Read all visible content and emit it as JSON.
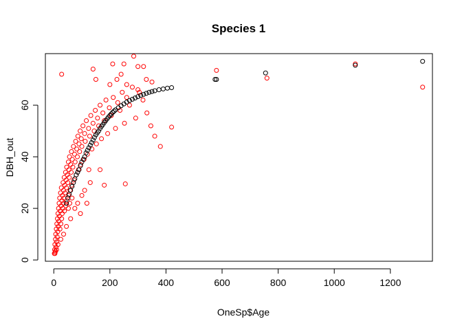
{
  "chart_data": {
    "type": "scatter",
    "title": "Species 1",
    "xlabel": "OneSp$Age",
    "ylabel": "DBH_out",
    "xlim": [
      -30,
      1350
    ],
    "ylim": [
      -0.5,
      80
    ],
    "x_ticks": [
      0,
      200,
      400,
      600,
      800,
      1000,
      1200
    ],
    "y_ticks": [
      0,
      20,
      40,
      60
    ],
    "grid": false,
    "legend": "none",
    "marker": "open-circle",
    "series": [
      {
        "color": "#ff0000",
        "points": [
          [
            2,
            2.5
          ],
          [
            3,
            4
          ],
          [
            4,
            6
          ],
          [
            5,
            3
          ],
          [
            6,
            8
          ],
          [
            7,
            10
          ],
          [
            8,
            5
          ],
          [
            9,
            12
          ],
          [
            10,
            7
          ],
          [
            11,
            14
          ],
          [
            12,
            9
          ],
          [
            13,
            16
          ],
          [
            14,
            11
          ],
          [
            15,
            18
          ],
          [
            16,
            13
          ],
          [
            17,
            20
          ],
          [
            18,
            15
          ],
          [
            19,
            22
          ],
          [
            20,
            17
          ],
          [
            21,
            24
          ],
          [
            22,
            12
          ],
          [
            23,
            19
          ],
          [
            24,
            26
          ],
          [
            25,
            14
          ],
          [
            26,
            21
          ],
          [
            27,
            28
          ],
          [
            28,
            16
          ],
          [
            29,
            23
          ],
          [
            30,
            18
          ],
          [
            31,
            25
          ],
          [
            32,
            20
          ],
          [
            33,
            30
          ],
          [
            34,
            22
          ],
          [
            35,
            27
          ],
          [
            36,
            24
          ],
          [
            37,
            32
          ],
          [
            38,
            19
          ],
          [
            39,
            29
          ],
          [
            40,
            26
          ],
          [
            42,
            34
          ],
          [
            43,
            21
          ],
          [
            44,
            31
          ],
          [
            45,
            28
          ],
          [
            46,
            36
          ],
          [
            47,
            23
          ],
          [
            48,
            33
          ],
          [
            50,
            30
          ],
          [
            52,
            38
          ],
          [
            53,
            25
          ],
          [
            54,
            35
          ],
          [
            55,
            32
          ],
          [
            56,
            40
          ],
          [
            58,
            27
          ],
          [
            60,
            37
          ],
          [
            62,
            34
          ],
          [
            63,
            42
          ],
          [
            64,
            29
          ],
          [
            66,
            39
          ],
          [
            68,
            36
          ],
          [
            70,
            44
          ],
          [
            72,
            31
          ],
          [
            74,
            41
          ],
          [
            76,
            38
          ],
          [
            78,
            46
          ],
          [
            80,
            33
          ],
          [
            82,
            43
          ],
          [
            84,
            40
          ],
          [
            86,
            48
          ],
          [
            88,
            35
          ],
          [
            90,
            45
          ],
          [
            92,
            42
          ],
          [
            94,
            50
          ],
          [
            96,
            37
          ],
          [
            98,
            47
          ],
          [
            100,
            44
          ],
          [
            104,
            52
          ],
          [
            108,
            39
          ],
          [
            110,
            49
          ],
          [
            112,
            46
          ],
          [
            116,
            54
          ],
          [
            120,
            41
          ],
          [
            124,
            51
          ],
          [
            128,
            48
          ],
          [
            132,
            56
          ],
          [
            136,
            43
          ],
          [
            140,
            53
          ],
          [
            144,
            50
          ],
          [
            148,
            58
          ],
          [
            152,
            45
          ],
          [
            156,
            55
          ],
          [
            160,
            52
          ],
          [
            165,
            60
          ],
          [
            170,
            47
          ],
          [
            175,
            57
          ],
          [
            180,
            54
          ],
          [
            186,
            62
          ],
          [
            192,
            49
          ],
          [
            198,
            59
          ],
          [
            205,
            56
          ],
          [
            212,
            63
          ],
          [
            220,
            51
          ],
          [
            228,
            61
          ],
          [
            236,
            58
          ],
          [
            244,
            65
          ],
          [
            252,
            53
          ],
          [
            260,
            63
          ],
          [
            270,
            60
          ],
          [
            280,
            67
          ],
          [
            292,
            55
          ],
          [
            305,
            65
          ],
          [
            318,
            62
          ],
          [
            332,
            57
          ],
          [
            346,
            52
          ],
          [
            360,
            48
          ],
          [
            380,
            44
          ],
          [
            420,
            51.5
          ],
          [
            28,
            72
          ],
          [
            140,
            74
          ],
          [
            150,
            70
          ],
          [
            210,
            76
          ],
          [
            240,
            72
          ],
          [
            250,
            76
          ],
          [
            300,
            75
          ],
          [
            320,
            75
          ],
          [
            285,
            79
          ],
          [
            200,
            68
          ],
          [
            225,
            70
          ],
          [
            260,
            68
          ],
          [
            300,
            66
          ],
          [
            330,
            70
          ],
          [
            350,
            69
          ],
          [
            255,
            29.5
          ],
          [
            180,
            29
          ],
          [
            165,
            35
          ],
          [
            118,
            22
          ],
          [
            95,
            18
          ],
          [
            60,
            16
          ],
          [
            45,
            13
          ],
          [
            35,
            10
          ],
          [
            25,
            8
          ],
          [
            15,
            6
          ],
          [
            10,
            4
          ],
          [
            6,
            3.5
          ],
          [
            4,
            2.5
          ],
          [
            130,
            30
          ],
          [
            125,
            35
          ],
          [
            110,
            27
          ],
          [
            100,
            25
          ],
          [
            85,
            22
          ],
          [
            75,
            20
          ],
          [
            65,
            24
          ],
          [
            57,
            22
          ],
          [
            52,
            20
          ],
          [
            580,
            73.5
          ],
          [
            760,
            70.5
          ],
          [
            1075,
            76
          ],
          [
            1315,
            67
          ]
        ]
      },
      {
        "color": "#000000",
        "points": [
          [
            45,
            22
          ],
          [
            50,
            24
          ],
          [
            55,
            25.5
          ],
          [
            60,
            27
          ],
          [
            65,
            28.5
          ],
          [
            70,
            30
          ],
          [
            75,
            31.5
          ],
          [
            80,
            33
          ],
          [
            85,
            34
          ],
          [
            90,
            35
          ],
          [
            95,
            36.5
          ],
          [
            100,
            38
          ],
          [
            105,
            39
          ],
          [
            110,
            40
          ],
          [
            115,
            41.5
          ],
          [
            120,
            42.5
          ],
          [
            125,
            43.5
          ],
          [
            130,
            44.5
          ],
          [
            135,
            45.5
          ],
          [
            140,
            46.5
          ],
          [
            145,
            47.5
          ],
          [
            150,
            48.5
          ],
          [
            155,
            49.3
          ],
          [
            160,
            50
          ],
          [
            165,
            51
          ],
          [
            170,
            51.8
          ],
          [
            175,
            52.5
          ],
          [
            180,
            53.3
          ],
          [
            185,
            54
          ],
          [
            190,
            54.7
          ],
          [
            195,
            55.4
          ],
          [
            200,
            56
          ],
          [
            205,
            56.6
          ],
          [
            210,
            57.2
          ],
          [
            215,
            57.7
          ],
          [
            220,
            58.2
          ],
          [
            230,
            59
          ],
          [
            240,
            59.8
          ],
          [
            250,
            60.5
          ],
          [
            260,
            61.2
          ],
          [
            270,
            61.8
          ],
          [
            280,
            62.3
          ],
          [
            290,
            62.8
          ],
          [
            300,
            63.3
          ],
          [
            310,
            63.8
          ],
          [
            320,
            64.2
          ],
          [
            330,
            64.6
          ],
          [
            340,
            65
          ],
          [
            350,
            65.3
          ],
          [
            360,
            65.6
          ],
          [
            375,
            66
          ],
          [
            390,
            66.3
          ],
          [
            405,
            66.6
          ],
          [
            420,
            66.8
          ],
          [
            575,
            70
          ],
          [
            580,
            70
          ],
          [
            755,
            72.5
          ],
          [
            1075,
            75.5
          ],
          [
            1315,
            77
          ]
        ]
      }
    ]
  }
}
